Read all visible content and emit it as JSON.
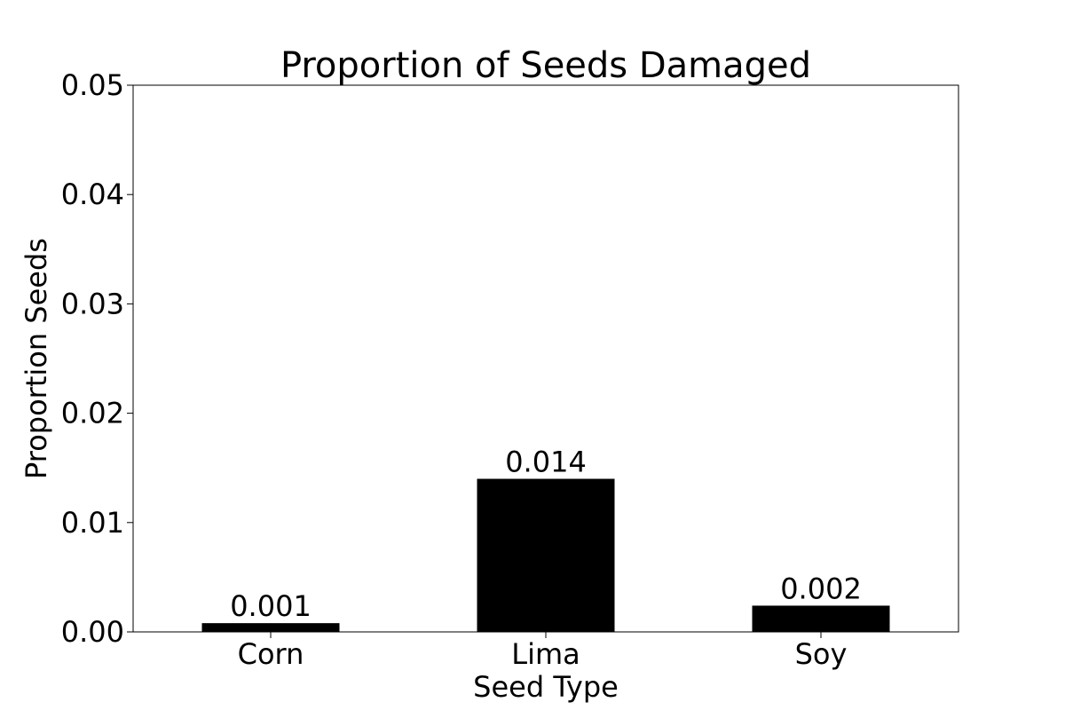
{
  "chart_data": {
    "type": "bar",
    "title": "Proportion of Seeds Damaged",
    "xlabel": "Seed Type",
    "ylabel": "Proportion Seeds",
    "categories": [
      "Corn",
      "Lima",
      "Soy"
    ],
    "values": [
      0.0008,
      0.014,
      0.0024
    ],
    "data_labels": [
      "0.001",
      "0.014",
      "0.002"
    ],
    "ylim": [
      0,
      0.05
    ],
    "yticks": [
      0.0,
      0.01,
      0.02,
      0.03,
      0.04,
      0.05
    ],
    "ytick_labels": [
      "0.00",
      "0.01",
      "0.02",
      "0.03",
      "0.04",
      "0.05"
    ],
    "bar_color": "#000000",
    "grid": false,
    "legend": "none"
  }
}
